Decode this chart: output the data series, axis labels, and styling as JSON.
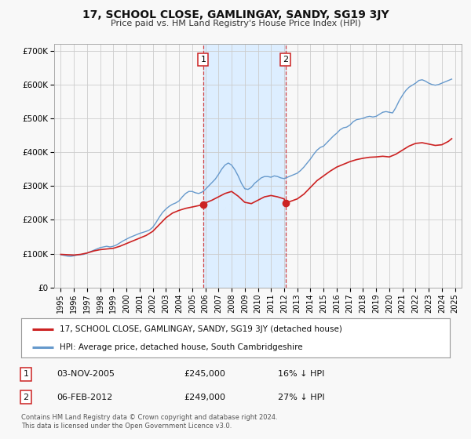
{
  "title": "17, SCHOOL CLOSE, GAMLINGAY, SANDY, SG19 3JY",
  "subtitle": "Price paid vs. HM Land Registry's House Price Index (HPI)",
  "legend_line1": "17, SCHOOL CLOSE, GAMLINGAY, SANDY, SG19 3JY (detached house)",
  "legend_line2": "HPI: Average price, detached house, South Cambridgeshire",
  "footnote": "Contains HM Land Registry data © Crown copyright and database right 2024.\nThis data is licensed under the Open Government Licence v3.0.",
  "sale1_label": "1",
  "sale1_date": "03-NOV-2005",
  "sale1_price": "£245,000",
  "sale1_hpi": "16% ↓ HPI",
  "sale1_year": 2005.84,
  "sale1_value": 245000,
  "sale2_label": "2",
  "sale2_date": "06-FEB-2012",
  "sale2_price": "£249,000",
  "sale2_hpi": "27% ↓ HPI",
  "sale2_year": 2012.1,
  "sale2_value": 249000,
  "hpi_color": "#6699cc",
  "price_color": "#cc2222",
  "sale_dot_color": "#cc2222",
  "shaded_color": "#ddeeff",
  "grid_color": "#cccccc",
  "background_color": "#f8f8f8",
  "ylim": [
    0,
    720000
  ],
  "yticks": [
    0,
    100000,
    200000,
    300000,
    400000,
    500000,
    600000,
    700000
  ],
  "ytick_labels": [
    "£0",
    "£100K",
    "£200K",
    "£300K",
    "£400K",
    "£500K",
    "£600K",
    "£700K"
  ],
  "xlim_start": 1994.5,
  "xlim_end": 2025.5,
  "xtick_years": [
    1995,
    1996,
    1997,
    1998,
    1999,
    2000,
    2001,
    2002,
    2003,
    2004,
    2005,
    2006,
    2007,
    2008,
    2009,
    2010,
    2011,
    2012,
    2013,
    2014,
    2015,
    2016,
    2017,
    2018,
    2019,
    2020,
    2021,
    2022,
    2023,
    2024,
    2025
  ],
  "hpi_data": [
    [
      1995.0,
      97000
    ],
    [
      1995.25,
      95000
    ],
    [
      1995.5,
      93000
    ],
    [
      1995.75,
      92000
    ],
    [
      1996.0,
      94000
    ],
    [
      1996.25,
      96000
    ],
    [
      1996.5,
      97000
    ],
    [
      1996.75,
      98000
    ],
    [
      1997.0,
      102000
    ],
    [
      1997.25,
      106000
    ],
    [
      1997.5,
      110000
    ],
    [
      1997.75,
      114000
    ],
    [
      1998.0,
      118000
    ],
    [
      1998.25,
      120000
    ],
    [
      1998.5,
      122000
    ],
    [
      1998.75,
      120000
    ],
    [
      1999.0,
      122000
    ],
    [
      1999.25,
      126000
    ],
    [
      1999.5,
      132000
    ],
    [
      1999.75,
      138000
    ],
    [
      2000.0,
      143000
    ],
    [
      2000.25,
      148000
    ],
    [
      2000.5,
      152000
    ],
    [
      2000.75,
      156000
    ],
    [
      2001.0,
      160000
    ],
    [
      2001.25,
      163000
    ],
    [
      2001.5,
      166000
    ],
    [
      2001.75,
      170000
    ],
    [
      2002.0,
      178000
    ],
    [
      2002.25,
      192000
    ],
    [
      2002.5,
      208000
    ],
    [
      2002.75,
      222000
    ],
    [
      2003.0,
      232000
    ],
    [
      2003.25,
      240000
    ],
    [
      2003.5,
      246000
    ],
    [
      2003.75,
      250000
    ],
    [
      2004.0,
      256000
    ],
    [
      2004.25,
      268000
    ],
    [
      2004.5,
      278000
    ],
    [
      2004.75,
      284000
    ],
    [
      2005.0,
      284000
    ],
    [
      2005.25,
      280000
    ],
    [
      2005.5,
      278000
    ],
    [
      2005.75,
      282000
    ],
    [
      2006.0,
      290000
    ],
    [
      2006.25,
      300000
    ],
    [
      2006.5,
      310000
    ],
    [
      2006.75,
      320000
    ],
    [
      2007.0,
      334000
    ],
    [
      2007.25,
      350000
    ],
    [
      2007.5,
      362000
    ],
    [
      2007.75,
      368000
    ],
    [
      2008.0,
      362000
    ],
    [
      2008.25,
      348000
    ],
    [
      2008.5,
      330000
    ],
    [
      2008.75,
      308000
    ],
    [
      2009.0,
      292000
    ],
    [
      2009.25,
      290000
    ],
    [
      2009.5,
      296000
    ],
    [
      2009.75,
      308000
    ],
    [
      2010.0,
      316000
    ],
    [
      2010.25,
      324000
    ],
    [
      2010.5,
      328000
    ],
    [
      2010.75,
      328000
    ],
    [
      2011.0,
      326000
    ],
    [
      2011.25,
      330000
    ],
    [
      2011.5,
      328000
    ],
    [
      2011.75,
      324000
    ],
    [
      2012.0,
      322000
    ],
    [
      2012.25,
      326000
    ],
    [
      2012.5,
      330000
    ],
    [
      2012.75,
      334000
    ],
    [
      2013.0,
      338000
    ],
    [
      2013.25,
      346000
    ],
    [
      2013.5,
      356000
    ],
    [
      2013.75,
      368000
    ],
    [
      2014.0,
      380000
    ],
    [
      2014.25,
      394000
    ],
    [
      2014.5,
      406000
    ],
    [
      2014.75,
      414000
    ],
    [
      2015.0,
      418000
    ],
    [
      2015.25,
      428000
    ],
    [
      2015.5,
      438000
    ],
    [
      2015.75,
      448000
    ],
    [
      2016.0,
      456000
    ],
    [
      2016.25,
      466000
    ],
    [
      2016.5,
      472000
    ],
    [
      2016.75,
      474000
    ],
    [
      2017.0,
      480000
    ],
    [
      2017.25,
      490000
    ],
    [
      2017.5,
      496000
    ],
    [
      2017.75,
      498000
    ],
    [
      2018.0,
      500000
    ],
    [
      2018.25,
      504000
    ],
    [
      2018.5,
      506000
    ],
    [
      2018.75,
      504000
    ],
    [
      2019.0,
      506000
    ],
    [
      2019.25,
      512000
    ],
    [
      2019.5,
      518000
    ],
    [
      2019.75,
      520000
    ],
    [
      2020.0,
      518000
    ],
    [
      2020.25,
      516000
    ],
    [
      2020.5,
      532000
    ],
    [
      2020.75,
      552000
    ],
    [
      2021.0,
      568000
    ],
    [
      2021.25,
      582000
    ],
    [
      2021.5,
      592000
    ],
    [
      2021.75,
      598000
    ],
    [
      2022.0,
      604000
    ],
    [
      2022.25,
      612000
    ],
    [
      2022.5,
      614000
    ],
    [
      2022.75,
      610000
    ],
    [
      2023.0,
      604000
    ],
    [
      2023.25,
      600000
    ],
    [
      2023.5,
      598000
    ],
    [
      2023.75,
      600000
    ],
    [
      2024.0,
      604000
    ],
    [
      2024.25,
      608000
    ],
    [
      2024.5,
      612000
    ],
    [
      2024.75,
      616000
    ]
  ],
  "price_data": [
    [
      1995.0,
      98000
    ],
    [
      1995.5,
      97000
    ],
    [
      1996.0,
      96000
    ],
    [
      1996.5,
      98000
    ],
    [
      1997.0,
      102000
    ],
    [
      1997.5,
      108000
    ],
    [
      1998.0,
      112000
    ],
    [
      1998.5,
      114000
    ],
    [
      1999.0,
      116000
    ],
    [
      1999.5,
      122000
    ],
    [
      2000.0,
      130000
    ],
    [
      2000.5,
      138000
    ],
    [
      2001.0,
      146000
    ],
    [
      2001.5,
      154000
    ],
    [
      2002.0,
      166000
    ],
    [
      2002.5,
      186000
    ],
    [
      2003.0,
      206000
    ],
    [
      2003.5,
      220000
    ],
    [
      2004.0,
      228000
    ],
    [
      2004.5,
      234000
    ],
    [
      2005.0,
      238000
    ],
    [
      2005.84,
      245000
    ],
    [
      2006.0,
      250000
    ],
    [
      2006.5,
      258000
    ],
    [
      2007.0,
      268000
    ],
    [
      2007.5,
      278000
    ],
    [
      2008.0,
      284000
    ],
    [
      2008.5,
      270000
    ],
    [
      2009.0,
      252000
    ],
    [
      2009.5,
      248000
    ],
    [
      2010.0,
      258000
    ],
    [
      2010.5,
      268000
    ],
    [
      2011.0,
      272000
    ],
    [
      2011.5,
      268000
    ],
    [
      2012.0,
      262000
    ],
    [
      2012.1,
      249000
    ],
    [
      2012.5,
      255000
    ],
    [
      2013.0,
      262000
    ],
    [
      2013.5,
      276000
    ],
    [
      2014.0,
      296000
    ],
    [
      2014.5,
      316000
    ],
    [
      2015.0,
      330000
    ],
    [
      2015.5,
      344000
    ],
    [
      2016.0,
      356000
    ],
    [
      2016.5,
      364000
    ],
    [
      2017.0,
      372000
    ],
    [
      2017.5,
      378000
    ],
    [
      2018.0,
      382000
    ],
    [
      2018.5,
      385000
    ],
    [
      2019.0,
      386000
    ],
    [
      2019.5,
      388000
    ],
    [
      2020.0,
      386000
    ],
    [
      2020.5,
      394000
    ],
    [
      2021.0,
      406000
    ],
    [
      2021.5,
      418000
    ],
    [
      2022.0,
      426000
    ],
    [
      2022.5,
      428000
    ],
    [
      2023.0,
      424000
    ],
    [
      2023.5,
      420000
    ],
    [
      2024.0,
      422000
    ],
    [
      2024.5,
      432000
    ],
    [
      2024.75,
      440000
    ]
  ]
}
